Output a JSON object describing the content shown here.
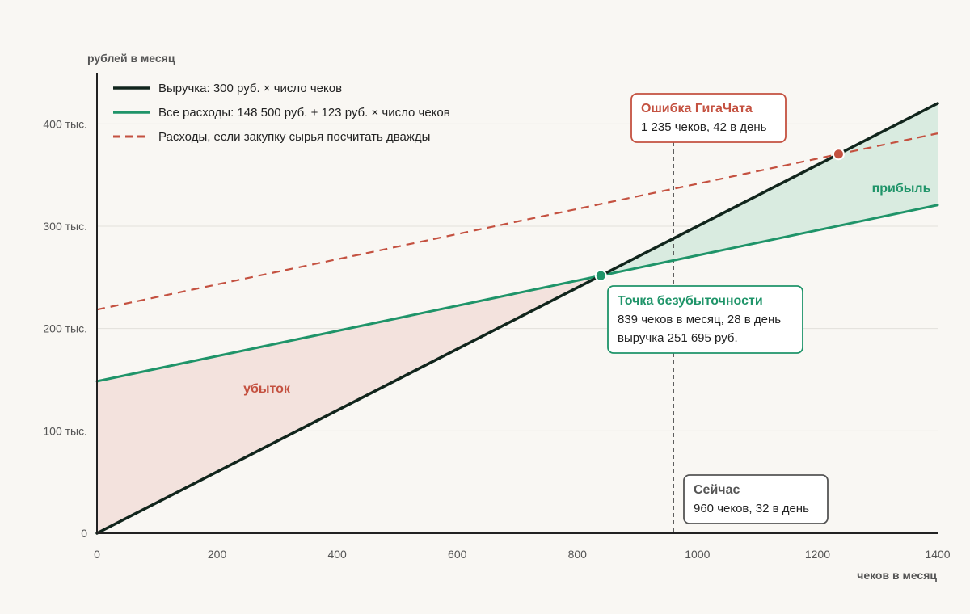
{
  "chart_data": {
    "type": "line",
    "ylabel": "рублей в месяц",
    "xlabel": "чеков в месяц",
    "xlim": [
      0,
      1400
    ],
    "ylim": [
      0,
      450000
    ],
    "x_ticks": [
      {
        "value": 0,
        "label": "0"
      },
      {
        "value": 200,
        "label": "200"
      },
      {
        "value": 400,
        "label": "400"
      },
      {
        "value": 600,
        "label": "600"
      },
      {
        "value": 800,
        "label": "800"
      },
      {
        "value": 1000,
        "label": "1000"
      },
      {
        "value": 1200,
        "label": "1200"
      },
      {
        "value": 1400,
        "label": "1400"
      }
    ],
    "y_ticks": [
      {
        "value": 0,
        "label": "0"
      },
      {
        "value": 100000,
        "label": "100 тыс."
      },
      {
        "value": 200000,
        "label": "200 тыс."
      },
      {
        "value": 300000,
        "label": "300 тыс."
      },
      {
        "value": 400000,
        "label": "400 тыс."
      }
    ],
    "grid": "horizontal",
    "legend_position": "top-left",
    "series": [
      {
        "name": "Выручка: 300 руб. × число чеков",
        "style": "solid",
        "color": "#11251c",
        "x": [
          0,
          1400
        ],
        "y": [
          0,
          420000
        ]
      },
      {
        "name": "Все расходы: 148 500 руб. + 123 руб. × число чеков",
        "style": "solid",
        "color": "#1f9469",
        "x": [
          0,
          1400
        ],
        "y": [
          148500,
          320700
        ]
      },
      {
        "name": "Расходы, если закупку сырья посчитать дважды",
        "style": "dashed",
        "color": "#c45140",
        "x": [
          0,
          1400
        ],
        "y": [
          218500,
          390700
        ]
      }
    ],
    "regions": [
      {
        "label": "убыток",
        "color": "#c45140",
        "fill": "#f3e2dd"
      },
      {
        "label": "прибыль",
        "color": "#1f9469",
        "fill": "#d9ebe0"
      }
    ],
    "markers": [
      {
        "x": 839,
        "y": 251700,
        "color": "#1f9469"
      },
      {
        "x": 1235,
        "y": 370500,
        "color": "#c45140"
      }
    ],
    "vline": {
      "x": 960
    },
    "annotations": [
      {
        "title": "Ошибка ГигаЧата",
        "lines": [
          "1 235 чеков, 42 в день"
        ],
        "color": "#c45140",
        "x": 1235,
        "y": 370500
      },
      {
        "title": "Точка безубыточности",
        "lines": [
          "839 чеков в месяц, 28 в день",
          "выручка 251 695 руб."
        ],
        "color": "#1f9469",
        "x": 839,
        "y": 251700
      },
      {
        "title": "Сейчас",
        "lines": [
          "960 чеков, 32 в день"
        ],
        "color": "#555555",
        "x": 960,
        "y": 0
      }
    ]
  }
}
